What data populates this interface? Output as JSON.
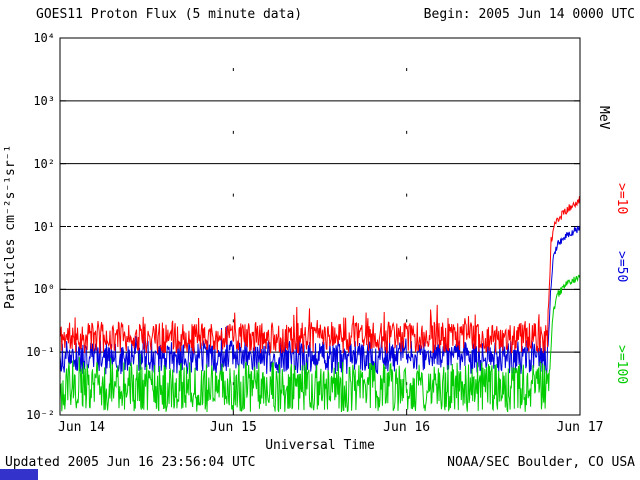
{
  "header": {
    "title": "GOES11 Proton Flux (5 minute data)",
    "begin_label": "Begin: 2005 Jun 14 0000 UTC"
  },
  "footer": {
    "updated": "Updated 2005 Jun 16 23:56:04 UTC",
    "source": "NOAA/SEC Boulder, CO USA"
  },
  "axes": {
    "y_title": "Particles cm⁻²s⁻¹sr⁻¹",
    "x_title": "Universal Time",
    "y_tick_labels": [
      "10⁴",
      "10³",
      "10²",
      "10¹",
      "10⁰",
      "10⁻¹",
      "10⁻²"
    ],
    "y_tick_exponents": [
      4,
      3,
      2,
      1,
      0,
      -1,
      -2
    ],
    "x_tick_labels": [
      "Jun 14",
      "Jun 15",
      "Jun 16",
      "Jun 17"
    ],
    "x_tick_hours": [
      0,
      24,
      48,
      72
    ],
    "right_unit_label": "MeV"
  },
  "badge_color": "#3333cc",
  "chart_data": {
    "type": "line",
    "title": "GOES11 Proton Flux (5 minute data)",
    "xlabel": "Universal Time",
    "ylabel": "Particles cm⁻²s⁻¹sr⁻¹",
    "x_start": "2005 Jun 14 0000 UTC",
    "x_range_hours": [
      0,
      72
    ],
    "ylim": [
      0.01,
      10000
    ],
    "y_scale": "log",
    "sample_interval_minutes": 5,
    "n_points": 864,
    "grid": {
      "solid_decades": [
        1000,
        100,
        1,
        0.1
      ],
      "dashed_decades": [
        10
      ],
      "day_lines_hours": [
        24,
        48
      ]
    },
    "series": [
      {
        "name": ">=10",
        "unit": "MeV",
        "color": "#ff0000",
        "seed": 11,
        "baseline_flux": 0.17,
        "noise_log_amp": 0.25,
        "spike_prob": 0.1,
        "spike_log_amp": 0.32,
        "event_noise_log": 0.08,
        "event_rise": [
          [
            67.5,
            0.25
          ],
          [
            67.8,
            1.5
          ],
          [
            68.0,
            6
          ],
          [
            68.4,
            10
          ],
          [
            69.0,
            13
          ],
          [
            70.0,
            17
          ],
          [
            71.0,
            22
          ],
          [
            72,
            28
          ]
        ]
      },
      {
        "name": ">=50",
        "unit": "MeV",
        "color": "#0000dd",
        "seed": 50,
        "baseline_flux": 0.083,
        "noise_log_amp": 0.27,
        "spike_prob": 0.05,
        "spike_log_amp": 0.25,
        "event_noise_log": 0.06,
        "event_rise": [
          [
            67.6,
            0.12
          ],
          [
            67.9,
            0.9
          ],
          [
            68.3,
            3.5
          ],
          [
            69.0,
            5.5
          ],
          [
            70.0,
            7.0
          ],
          [
            71.0,
            8.2
          ],
          [
            72,
            9.5
          ]
        ]
      },
      {
        "name": ">=100",
        "unit": "MeV",
        "color": "#00cc00",
        "seed": 100,
        "baseline_flux": 0.028,
        "noise_log_amp": 0.4,
        "spike_prob": 0.04,
        "spike_log_amp": 0.25,
        "event_noise_log": 0.06,
        "event_rise": [
          [
            67.8,
            0.05
          ],
          [
            68.2,
            0.35
          ],
          [
            68.8,
            0.8
          ],
          [
            69.8,
            1.1
          ],
          [
            71.0,
            1.4
          ],
          [
            72,
            1.7
          ]
        ]
      }
    ]
  }
}
